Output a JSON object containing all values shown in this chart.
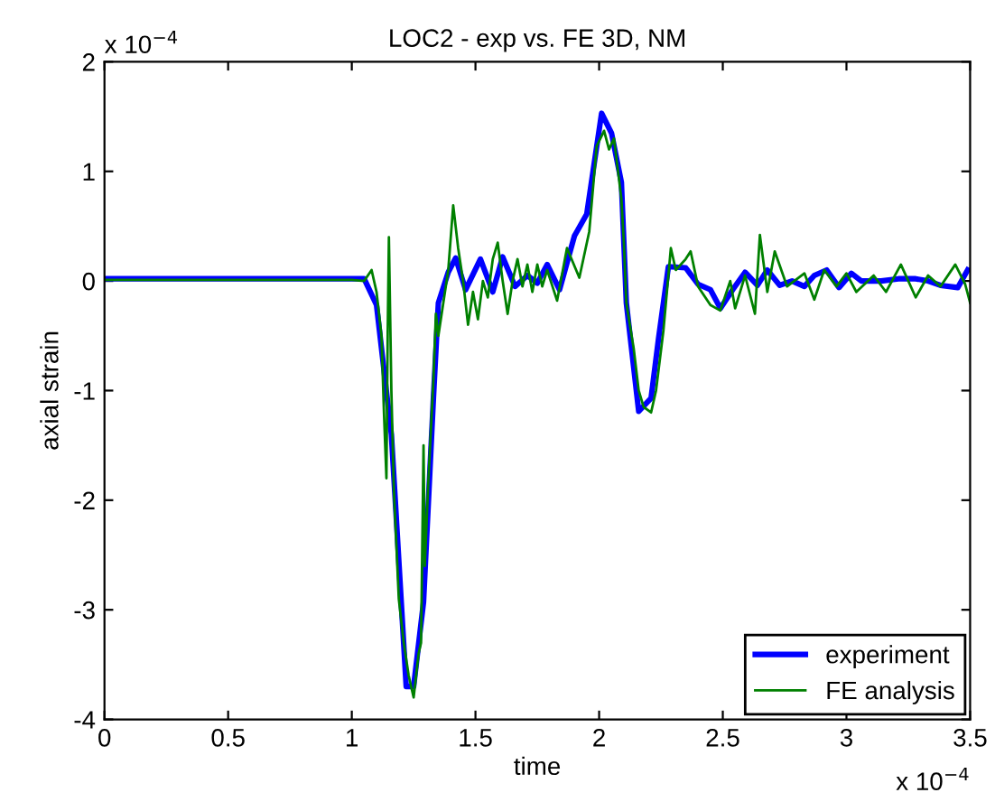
{
  "chart_data": {
    "type": "line",
    "title": "LOC2 - exp vs. FE 3D, NM",
    "xlabel": "time",
    "ylabel": "axial strain",
    "annotations": [
      "x 10$^{−4}$",
      "x 10$^{−4}$"
    ],
    "xlim": [
      0,
      3.5
    ],
    "ylim": [
      -4,
      2
    ],
    "xticks": [
      0,
      0.5,
      1,
      1.5,
      2,
      2.5,
      3,
      3.5
    ],
    "yticks": [
      -4,
      -3,
      -2,
      -1,
      0,
      1,
      2
    ],
    "grid": false,
    "legend": "bottom right",
    "line_style": "solid",
    "marker": "none",
    "series": [
      {
        "name": "experiment",
        "color": "#0000ff",
        "x": [
          0,
          0.5,
          1.0,
          1.05,
          1.1,
          1.16,
          1.22,
          1.25,
          1.29,
          1.33,
          1.35,
          1.39,
          1.42,
          1.46,
          1.52,
          1.57,
          1.61,
          1.66,
          1.71,
          1.75,
          1.79,
          1.84,
          1.9,
          1.95,
          2.01,
          2.05,
          2.09,
          2.11,
          2.16,
          2.21,
          2.24,
          2.28,
          2.35,
          2.4,
          2.45,
          2.49,
          2.54,
          2.59,
          2.64,
          2.68,
          2.73,
          2.78,
          2.83,
          2.87,
          2.92,
          2.97,
          3.02,
          3.06,
          3.14,
          3.21,
          3.28,
          3.33,
          3.38,
          3.45,
          3.49
        ],
        "values": [
          0.02,
          0.02,
          0.02,
          0.02,
          -0.22,
          -1.4,
          -3.7,
          -3.7,
          -2.93,
          -1.07,
          -0.2,
          0.08,
          0.21,
          -0.08,
          0.2,
          -0.1,
          0.22,
          -0.05,
          0.05,
          -0.02,
          0.15,
          -0.08,
          0.41,
          0.61,
          1.53,
          1.35,
          0.9,
          -0.2,
          -1.19,
          -1.07,
          -0.53,
          0.13,
          0.12,
          -0.03,
          -0.08,
          -0.25,
          -0.08,
          0.08,
          -0.04,
          0.1,
          -0.04,
          0,
          -0.05,
          0.05,
          0.1,
          -0.06,
          0.07,
          0,
          0,
          0.02,
          0.02,
          0,
          -0.04,
          -0.06,
          0.1
        ]
      },
      {
        "name": "FE analysis",
        "color": "#008000",
        "x": [
          0,
          0.5,
          1.0,
          1.05,
          1.08,
          1.1,
          1.12,
          1.13,
          1.14,
          1.145,
          1.15,
          1.16,
          1.17,
          1.19,
          1.21,
          1.23,
          1.25,
          1.26,
          1.27,
          1.28,
          1.29,
          1.295,
          1.31,
          1.33,
          1.34,
          1.35,
          1.37,
          1.39,
          1.41,
          1.43,
          1.45,
          1.47,
          1.49,
          1.51,
          1.53,
          1.55,
          1.57,
          1.59,
          1.61,
          1.63,
          1.65,
          1.67,
          1.69,
          1.71,
          1.73,
          1.75,
          1.77,
          1.79,
          1.83,
          1.87,
          1.92,
          1.96,
          1.99,
          2.02,
          2.04,
          2.06,
          2.09,
          2.1,
          2.11,
          2.14,
          2.16,
          2.18,
          2.21,
          2.23,
          2.26,
          2.29,
          2.31,
          2.35,
          2.37,
          2.4,
          2.45,
          2.49,
          2.53,
          2.55,
          2.59,
          2.63,
          2.65,
          2.68,
          2.71,
          2.76,
          2.83,
          2.87,
          2.91,
          2.96,
          3.0,
          3.04,
          3.11,
          3.16,
          3.22,
          3.28,
          3.33,
          3.38,
          3.44,
          3.48,
          3.5
        ],
        "values": [
          0.01,
          0.01,
          0.01,
          0.0,
          0.1,
          -0.1,
          -0.5,
          -1.2,
          -1.8,
          -0.5,
          0.4,
          -1.0,
          -1.9,
          -2.9,
          -3.3,
          -3.6,
          -3.8,
          -3.6,
          -3.4,
          -3.3,
          -1.5,
          -2.6,
          -1.8,
          -0.9,
          -0.3,
          -0.5,
          -0.2,
          0.1,
          0.69,
          0.3,
          0.0,
          -0.4,
          -0.1,
          -0.35,
          0.0,
          -0.15,
          0.2,
          0.35,
          0.0,
          -0.3,
          0.0,
          0.2,
          -0.05,
          0.15,
          -0.1,
          0.15,
          -0.05,
          0.1,
          -0.18,
          0.3,
          0.03,
          0.45,
          1.23,
          1.37,
          1.2,
          1.3,
          0.75,
          0.35,
          -0.2,
          -0.62,
          -1.0,
          -1.15,
          -1.2,
          -1.0,
          -0.45,
          0.3,
          0.1,
          0.2,
          0.27,
          -0.05,
          -0.22,
          -0.27,
          0,
          -0.25,
          0.05,
          -0.3,
          0.42,
          -0.1,
          0.27,
          -0.05,
          0.07,
          -0.17,
          0.1,
          -0.05,
          0.07,
          -0.1,
          0.05,
          -0.1,
          0.15,
          -0.15,
          0.05,
          -0.05,
          0.15,
          -0.03,
          -0.2
        ]
      }
    ]
  }
}
